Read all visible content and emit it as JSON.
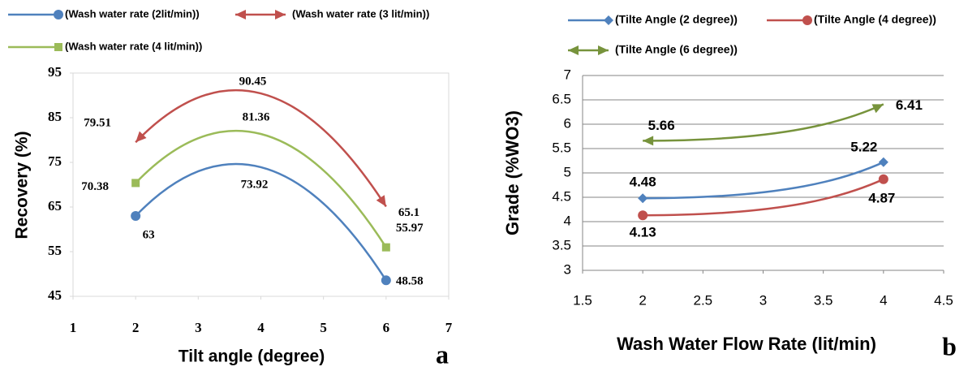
{
  "chart_data": [
    {
      "type": "line",
      "smooth": true,
      "markers_at_ends": true,
      "x_label": "Tilt angle (degree)",
      "y_label": "Recovery (%)",
      "annotation": "a",
      "x": [
        2,
        4,
        6
      ],
      "series": [
        {
          "name": "(Wash water rate (2lit/min))",
          "color": "#4f81bd",
          "marker": "circle",
          "values": [
            63,
            73.92,
            48.58
          ]
        },
        {
          "name": "(Wash water rate (3 lit/min))",
          "color": "#c0504d",
          "marker": "arrow",
          "values": [
            79.51,
            90.45,
            65.1
          ]
        },
        {
          "name": "(Wash water rate (4 lit/min))",
          "color": "#9bbb59",
          "marker": "square",
          "values": [
            70.38,
            81.36,
            55.97
          ]
        }
      ],
      "xlim": [
        1,
        7
      ],
      "xticks": [
        1,
        2,
        3,
        4,
        5,
        6,
        7
      ],
      "ylim": [
        45,
        95
      ],
      "yticks": [
        45,
        55,
        65,
        75,
        85,
        95
      ],
      "grid": false
    },
    {
      "type": "line",
      "smooth": true,
      "markers_at_ends": true,
      "x_label": "Wash Water Flow Rate (lit/min)",
      "y_label": "Grade (%WO3)",
      "annotation": "b",
      "x": [
        2,
        4
      ],
      "series": [
        {
          "name": "(Tilte Angle (2 degree))",
          "color": "#4f81bd",
          "marker": "diamond",
          "values": [
            4.48,
            5.22
          ]
        },
        {
          "name": "(Tilte Angle (4 degree))",
          "color": "#c0504d",
          "marker": "circle",
          "values": [
            4.13,
            4.87
          ]
        },
        {
          "name": "(Tilte Angle (6 degree))",
          "color": "#77933c",
          "marker": "arrow",
          "values": [
            5.66,
            6.41
          ]
        }
      ],
      "xlim": [
        1.5,
        4.5
      ],
      "xticks": [
        1.5,
        2,
        2.5,
        3,
        3.5,
        4,
        4.5
      ],
      "ylim": [
        3,
        7
      ],
      "yticks": [
        3,
        3.5,
        4,
        4.5,
        5,
        5.5,
        6,
        6.5,
        7
      ],
      "grid": true
    }
  ]
}
